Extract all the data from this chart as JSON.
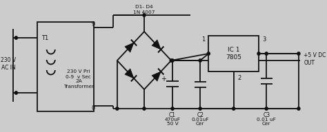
{
  "bg_color": "#cccccc",
  "line_color": "#111111",
  "lw": 1.3,
  "fig_width": 4.74,
  "fig_height": 1.92,
  "dpi": 100,
  "labels": {
    "ac_in": "230 V\nAC IN",
    "t1": "T1",
    "xfmr": "230 V Pri\n0-9  v Sec\n2A\nTransformer",
    "node9": "9",
    "node0": "0",
    "bridge": "D1- D4\n1N 4007",
    "c1": "C1",
    "c1val": "470uF\n50 V",
    "c1plus": "+",
    "c2": "C2",
    "c2val": "0.01uF\nCer",
    "ic": "IC 1\n7805",
    "pin1": "1",
    "pin2": "2",
    "pin3": "3",
    "c3": "C3",
    "c3val": "0.01 uF\nCer",
    "out": "+5 V DC\nOUT"
  }
}
